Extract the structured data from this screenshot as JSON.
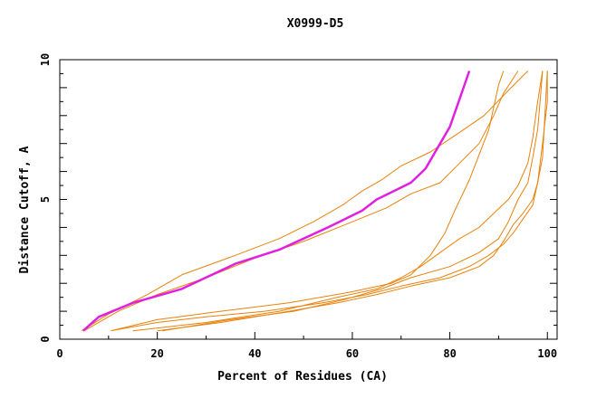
{
  "chart_data": {
    "type": "line",
    "title": "X0999-D5",
    "xlabel": "Percent of Residues (CA)",
    "ylabel": "Distance Cutoff, A",
    "xlim": [
      0,
      102
    ],
    "ylim": [
      0,
      10
    ],
    "x_ticks": [
      0,
      20,
      40,
      60,
      80,
      100
    ],
    "y_ticks": [
      0,
      5,
      10
    ],
    "grid": false,
    "legend": "none",
    "colors": {
      "series": "#e8820a",
      "highlight": "#e020e0"
    },
    "series": [
      {
        "highlight": true,
        "points": [
          [
            4.8,
            0.3
          ],
          [
            8,
            0.8
          ],
          [
            15,
            1.3
          ],
          [
            25,
            1.8
          ],
          [
            36,
            2.7
          ],
          [
            45,
            3.2
          ],
          [
            55,
            4.0
          ],
          [
            62,
            4.6
          ],
          [
            65,
            5.0
          ],
          [
            72,
            5.6
          ],
          [
            75,
            6.1
          ],
          [
            78,
            7.0
          ],
          [
            80,
            7.6
          ],
          [
            82,
            8.6
          ],
          [
            84,
            9.6
          ]
        ]
      },
      {
        "highlight": false,
        "points": [
          [
            4.5,
            0.3
          ],
          [
            10,
            0.9
          ],
          [
            18,
            1.6
          ],
          [
            25,
            2.3
          ],
          [
            36,
            3.0
          ],
          [
            45,
            3.6
          ],
          [
            52,
            4.2
          ],
          [
            58,
            4.8
          ],
          [
            62,
            5.3
          ],
          [
            66,
            5.7
          ],
          [
            70,
            6.2
          ],
          [
            76,
            6.7
          ],
          [
            82,
            7.4
          ],
          [
            87,
            8.0
          ],
          [
            92,
            8.9
          ],
          [
            96,
            9.6
          ]
        ]
      },
      {
        "highlight": false,
        "points": [
          [
            5,
            0.3
          ],
          [
            12,
            1.0
          ],
          [
            20,
            1.6
          ],
          [
            30,
            2.2
          ],
          [
            40,
            2.9
          ],
          [
            50,
            3.5
          ],
          [
            60,
            4.2
          ],
          [
            67,
            4.7
          ],
          [
            72,
            5.2
          ],
          [
            78,
            5.6
          ],
          [
            82,
            6.3
          ],
          [
            86,
            7.0
          ],
          [
            89,
            8.0
          ],
          [
            91,
            8.8
          ],
          [
            94,
            9.6
          ]
        ]
      },
      {
        "highlight": false,
        "points": [
          [
            10.5,
            0.3
          ],
          [
            20,
            0.7
          ],
          [
            33,
            1.0
          ],
          [
            47,
            1.3
          ],
          [
            60,
            1.7
          ],
          [
            68,
            2.0
          ],
          [
            72,
            2.3
          ],
          [
            76,
            3.0
          ],
          [
            79,
            3.8
          ],
          [
            81,
            4.6
          ],
          [
            84,
            5.7
          ],
          [
            86,
            6.6
          ],
          [
            88,
            7.5
          ],
          [
            89,
            8.3
          ],
          [
            90,
            9.1
          ],
          [
            91,
            9.6
          ]
        ]
      },
      {
        "highlight": false,
        "points": [
          [
            15,
            0.3
          ],
          [
            30,
            0.6
          ],
          [
            45,
            1.0
          ],
          [
            57,
            1.5
          ],
          [
            65,
            1.8
          ],
          [
            70,
            2.2
          ],
          [
            74,
            2.6
          ],
          [
            78,
            3.1
          ],
          [
            82,
            3.6
          ],
          [
            86,
            4.0
          ],
          [
            89,
            4.5
          ],
          [
            92,
            5.0
          ],
          [
            94,
            5.5
          ],
          [
            96,
            6.3
          ],
          [
            97,
            7.2
          ],
          [
            98,
            8.5
          ],
          [
            99,
            9.6
          ]
        ]
      },
      {
        "highlight": false,
        "points": [
          [
            21,
            0.3
          ],
          [
            35,
            0.7
          ],
          [
            48,
            1.0
          ],
          [
            58,
            1.4
          ],
          [
            66,
            1.8
          ],
          [
            72,
            2.2
          ],
          [
            80,
            2.6
          ],
          [
            86,
            3.1
          ],
          [
            90,
            3.6
          ],
          [
            92,
            4.2
          ],
          [
            94,
            5.0
          ],
          [
            96,
            5.6
          ],
          [
            97,
            6.5
          ],
          [
            98,
            7.5
          ],
          [
            98.5,
            8.5
          ],
          [
            99,
            9.6
          ]
        ]
      },
      {
        "highlight": false,
        "points": [
          [
            20,
            0.3
          ],
          [
            33,
            0.6
          ],
          [
            47,
            1.0
          ],
          [
            57,
            1.3
          ],
          [
            65,
            1.6
          ],
          [
            72,
            1.9
          ],
          [
            80,
            2.2
          ],
          [
            86,
            2.6
          ],
          [
            89,
            3.0
          ],
          [
            91,
            3.5
          ],
          [
            93,
            4.1
          ],
          [
            95,
            4.5
          ],
          [
            97,
            5.0
          ],
          [
            98,
            5.6
          ],
          [
            99,
            6.5
          ],
          [
            99.5,
            8.0
          ],
          [
            100,
            9.6
          ]
        ]
      },
      {
        "highlight": false,
        "points": [
          [
            10.5,
            0.3
          ],
          [
            20,
            0.6
          ],
          [
            30,
            0.8
          ],
          [
            42,
            1.0
          ],
          [
            54,
            1.3
          ],
          [
            63,
            1.6
          ],
          [
            70,
            1.9
          ],
          [
            78,
            2.2
          ],
          [
            84,
            2.6
          ],
          [
            88,
            3.0
          ],
          [
            91,
            3.4
          ],
          [
            93,
            3.8
          ],
          [
            95,
            4.3
          ],
          [
            97,
            4.8
          ],
          [
            98,
            5.6
          ],
          [
            99,
            7.0
          ],
          [
            100,
            8.5
          ],
          [
            100,
            9.6
          ]
        ]
      }
    ]
  }
}
